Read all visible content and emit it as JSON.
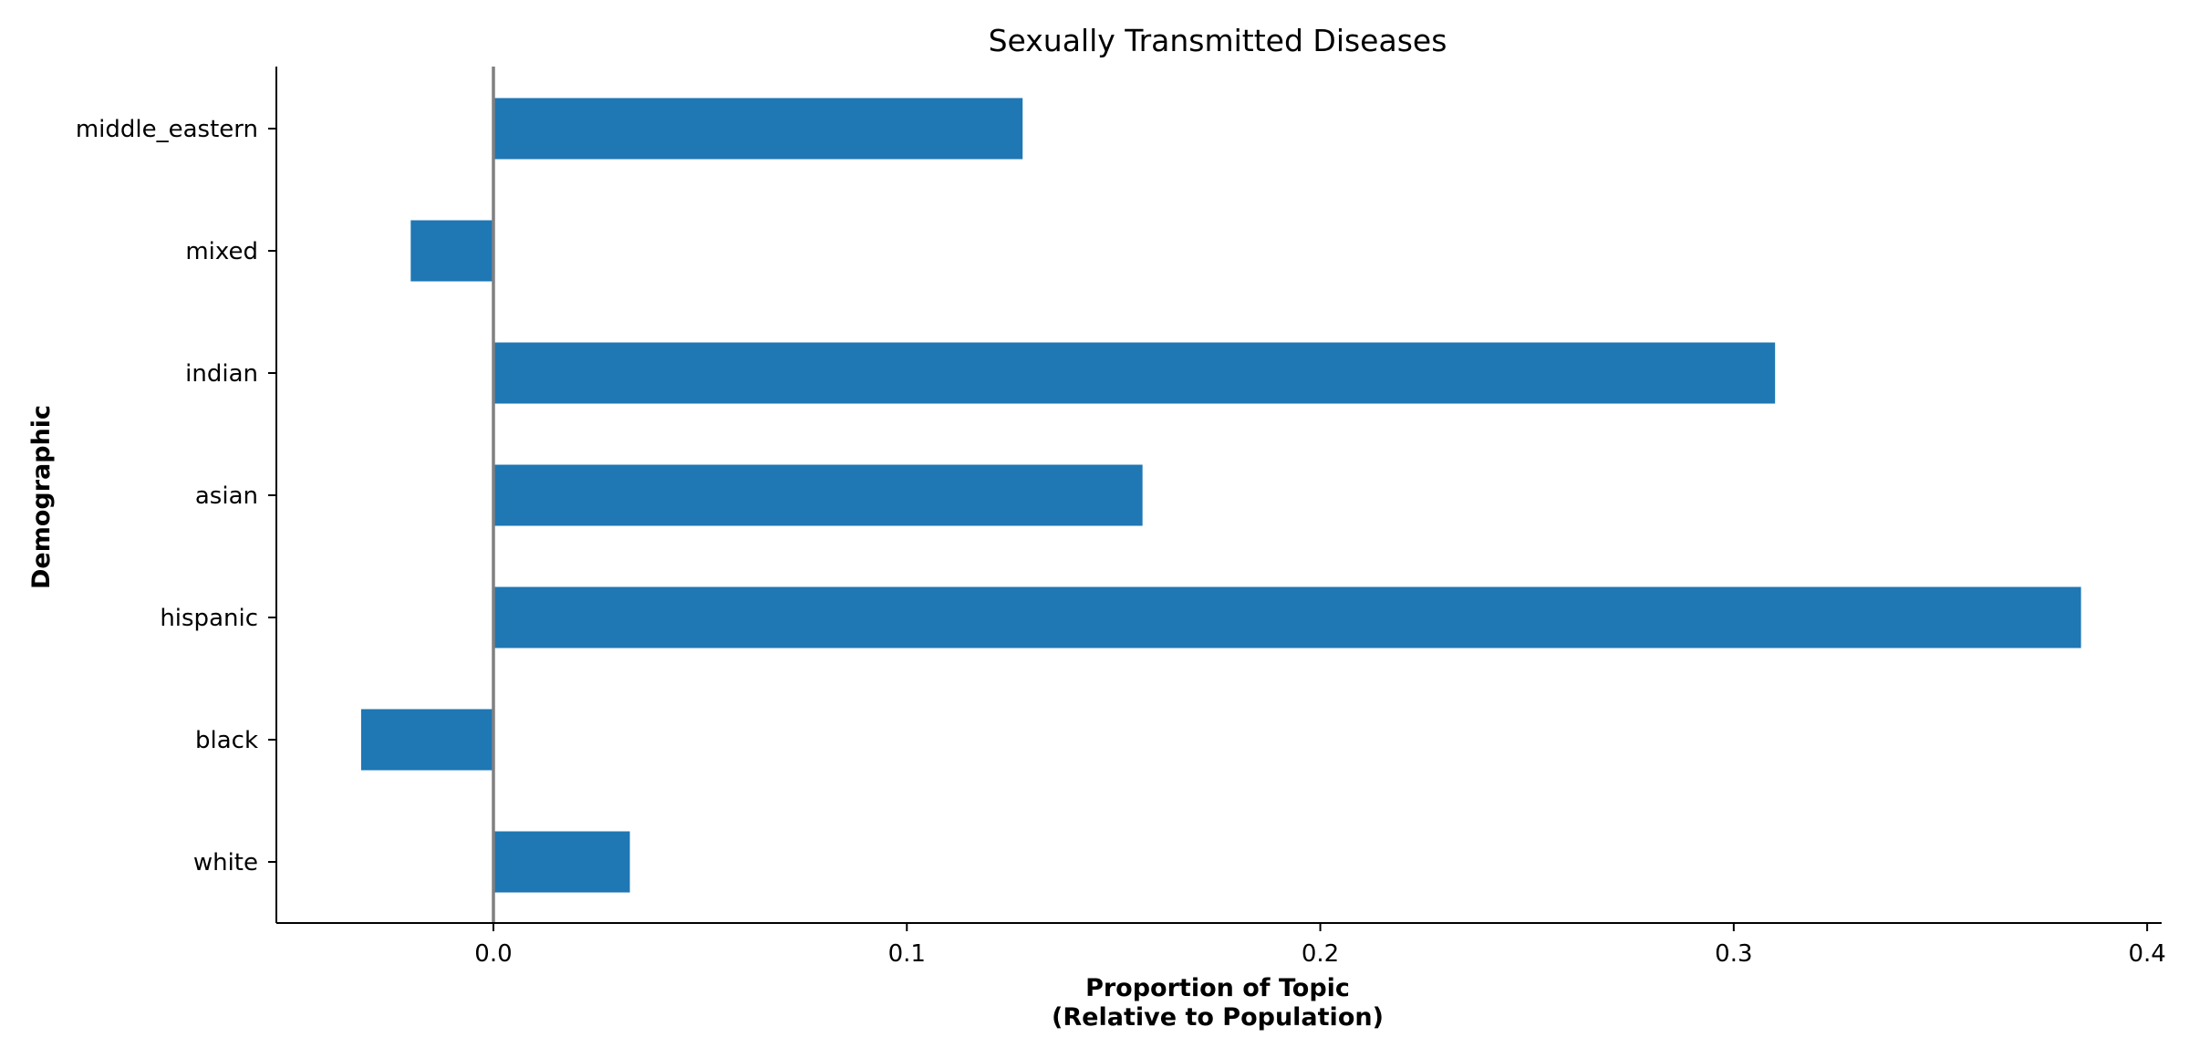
{
  "chart_data": {
    "type": "bar",
    "orientation": "horizontal",
    "title": "Sexually Transmitted Diseases",
    "xlabel_line1": "Proportion of Topic",
    "xlabel_line2": "(Relative to Population)",
    "ylabel": "Demographic",
    "categories": [
      "white",
      "black",
      "hispanic",
      "asian",
      "indian",
      "mixed",
      "middle_eastern"
    ],
    "values": [
      0.033,
      -0.032,
      0.384,
      0.157,
      0.31,
      -0.02,
      0.128
    ],
    "xlim": [
      -0.0525,
      0.4035
    ],
    "xticks": [
      0.0,
      0.1,
      0.2,
      0.3,
      0.4
    ],
    "xtick_labels": [
      "0.0",
      "0.1",
      "0.2",
      "0.3",
      "0.4"
    ],
    "bar_color": "#1f77b4",
    "zero_line_color": "#808080",
    "grid": false
  }
}
